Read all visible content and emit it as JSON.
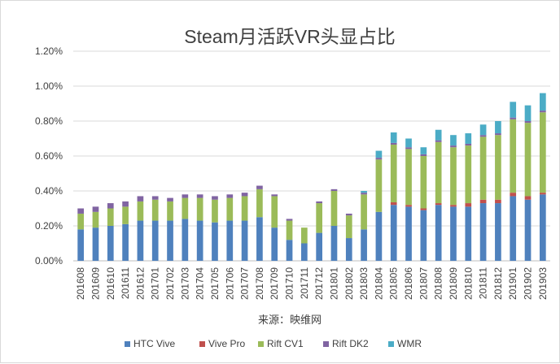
{
  "chart_data": {
    "type": "bar",
    "stacked": true,
    "title": "Steam月活跃VR头显占比",
    "source": "来源：映维网",
    "ylim": [
      0,
      0.012
    ],
    "yticks": [
      "0.00%",
      "0.20%",
      "0.40%",
      "0.60%",
      "0.80%",
      "1.00%",
      "1.20%"
    ],
    "grid": true,
    "legend_position": "bottom",
    "categories": [
      "201608",
      "201609",
      "201610",
      "201611",
      "201612",
      "201701",
      "201702",
      "201703",
      "201704",
      "201705",
      "201706",
      "201707",
      "201708",
      "201709",
      "201710",
      "201711",
      "201712",
      "201801",
      "201802",
      "201803",
      "201804",
      "201805",
      "201806",
      "201807",
      "201808",
      "201809",
      "201810",
      "201811",
      "201812",
      "201901",
      "201902",
      "201903"
    ],
    "series": [
      {
        "name": "HTC Vive",
        "color": "#4f81bd",
        "values": [
          0.0018,
          0.0019,
          0.002,
          0.0021,
          0.0023,
          0.0023,
          0.0023,
          0.0024,
          0.0023,
          0.0022,
          0.0023,
          0.0023,
          0.0025,
          0.0019,
          0.0012,
          0.001,
          0.0016,
          0.002,
          0.0013,
          0.0018,
          0.0028,
          0.0032,
          0.0031,
          0.0029,
          0.0032,
          0.0031,
          0.0031,
          0.0033,
          0.0033,
          0.0037,
          0.0035,
          0.0038
        ]
      },
      {
        "name": "Vive Pro",
        "color": "#c0504d",
        "values": [
          0,
          0,
          0,
          0,
          0,
          0,
          0,
          0,
          0,
          0,
          0,
          0,
          0,
          0,
          0,
          0,
          0,
          0,
          0,
          0,
          0,
          0.00015,
          0.0001,
          0.0001,
          0.0001,
          0.0001,
          0.0002,
          0.0002,
          0.0002,
          0.0002,
          0.0002,
          0.0001
        ]
      },
      {
        "name": "Rift CV1",
        "color": "#9bbb59",
        "values": [
          0.0009,
          0.0009,
          0.001,
          0.001,
          0.0011,
          0.0012,
          0.0011,
          0.0012,
          0.0013,
          0.0013,
          0.0013,
          0.0014,
          0.0016,
          0.0018,
          0.0011,
          0.0009,
          0.0017,
          0.002,
          0.0013,
          0.002,
          0.003,
          0.0033,
          0.0032,
          0.003,
          0.0035,
          0.0033,
          0.0033,
          0.0036,
          0.0037,
          0.0042,
          0.0042,
          0.0046
        ]
      },
      {
        "name": "Rift DK2",
        "color": "#8064a2",
        "values": [
          0.0003,
          0.0003,
          0.0003,
          0.0003,
          0.0003,
          0.0002,
          0.0002,
          0.0002,
          0.0002,
          0.0002,
          0.0002,
          0.0002,
          0.0002,
          0.0001,
          0.0001,
          0.0,
          0.0001,
          0.0001,
          0.0001,
          0.0001,
          0.0001,
          0.0001,
          0.0001,
          0.0001,
          0.0001,
          0.0001,
          0.0001,
          0.0001,
          0.0001,
          0.0001,
          0.0001,
          0.0001
        ]
      },
      {
        "name": "WMR",
        "color": "#4bacc6",
        "values": [
          0,
          0,
          0,
          0,
          0,
          0,
          0,
          0,
          0,
          0,
          0,
          0,
          0,
          0,
          0,
          0,
          0,
          0,
          0,
          0.0001,
          0.0004,
          0.0006,
          0.0005,
          0.0004,
          0.0006,
          0.0006,
          0.0006,
          0.0006,
          0.0007,
          0.0009,
          0.0009,
          0.001
        ]
      }
    ]
  }
}
